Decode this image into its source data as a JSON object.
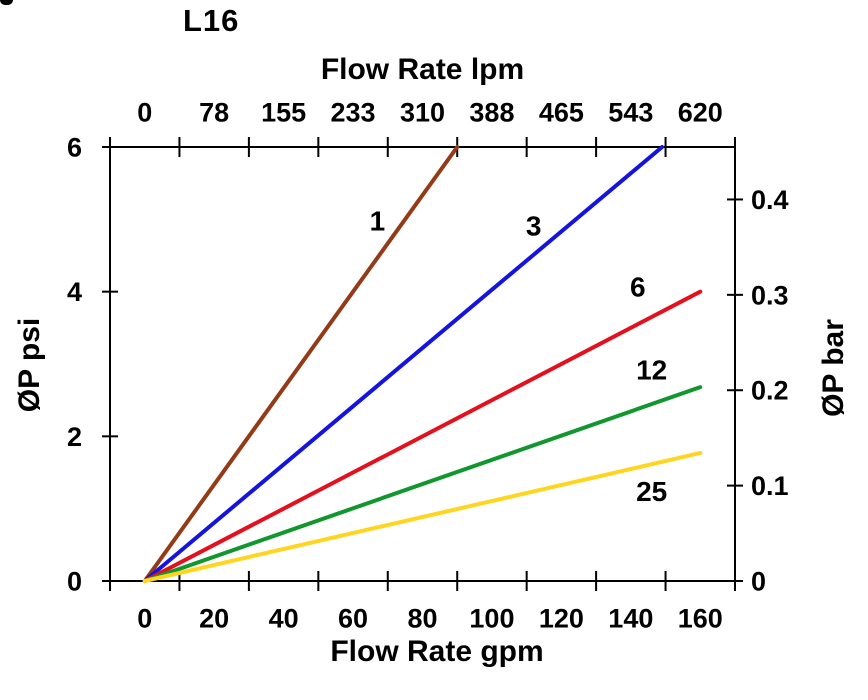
{
  "page": {
    "background": "#FFFFFF",
    "text_color": "#000000"
  },
  "corner_artifact": {
    "icon": "clipped-glyph"
  },
  "chart_data": {
    "type": "line",
    "title": "L16",
    "grid": false,
    "legend_position": "inline-labels",
    "axis_color": "#000000",
    "axes": {
      "top": {
        "title": "Flow Rate lpm",
        "tick_labels": [
          "0",
          "78",
          "155",
          "233",
          "310",
          "388",
          "465",
          "543",
          "620"
        ]
      },
      "bottom": {
        "title": "Flow Rate gpm",
        "tick_labels": [
          "0",
          "20",
          "40",
          "60",
          "80",
          "100",
          "120",
          "140",
          "160"
        ],
        "range": [
          0,
          160
        ]
      },
      "left": {
        "title": "ØP psi",
        "tick_labels": [
          "6",
          "4",
          "2",
          "0"
        ],
        "tick_values": [
          6,
          4,
          2,
          0
        ],
        "range": [
          0,
          6
        ]
      },
      "right": {
        "title": "ØP bar",
        "tick_labels": [
          "0.4",
          "0.3",
          "0.2",
          "0.1",
          "0"
        ],
        "tick_values": [
          0.4,
          0.3,
          0.2,
          0.1,
          0
        ],
        "range": [
          0,
          0.455
        ]
      }
    },
    "series": [
      {
        "name": "1",
        "color": "#933A16",
        "points_gpm_psi": [
          [
            0,
            0
          ],
          [
            90,
            6
          ]
        ],
        "label_pos": [
          67,
          4.98
        ]
      },
      {
        "name": "3",
        "color": "#1414DC",
        "points_gpm_psi": [
          [
            0,
            0
          ],
          [
            149,
            6
          ]
        ],
        "label_pos": [
          112,
          4.91
        ]
      },
      {
        "name": "6",
        "color": "#E3101E",
        "points_gpm_psi": [
          [
            0,
            0
          ],
          [
            160,
            4.0
          ]
        ],
        "label_pos": [
          142,
          4.07
        ]
      },
      {
        "name": "12",
        "color": "#12962E",
        "points_gpm_psi": [
          [
            0,
            0
          ],
          [
            160,
            2.68
          ]
        ],
        "label_pos": [
          146,
          2.92
        ]
      },
      {
        "name": "25",
        "color": "#FFD520",
        "points_gpm_psi": [
          [
            0,
            0
          ],
          [
            160,
            1.77
          ]
        ],
        "label_pos": [
          146,
          1.24
        ]
      }
    ]
  }
}
